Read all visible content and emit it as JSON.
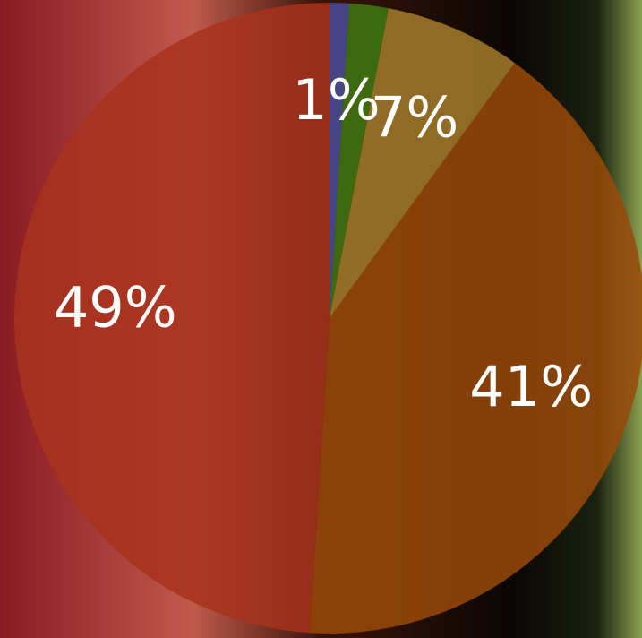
{
  "chart_data": {
    "type": "pie",
    "values": [
      1,
      2,
      7,
      41,
      49
    ],
    "value_labels": [
      "1%",
      null,
      "7%",
      "41%",
      "49%"
    ],
    "colors": [
      "#4a4f9a",
      "#3f7a10",
      "#a47c2c",
      "#9a4a08",
      "#a8321c"
    ]
  }
}
